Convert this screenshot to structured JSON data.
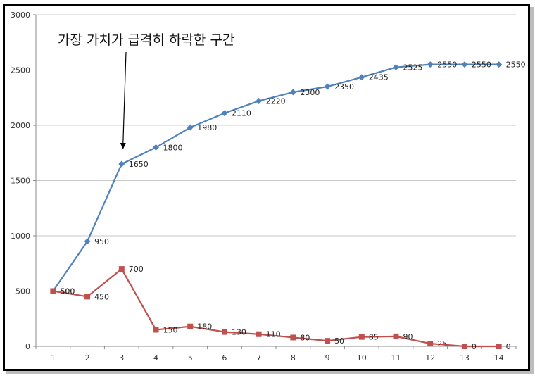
{
  "chart_data": {
    "type": "line",
    "title": "",
    "xlabel": "",
    "ylabel": "",
    "categories": [
      "1",
      "2",
      "3",
      "4",
      "5",
      "6",
      "7",
      "8",
      "9",
      "10",
      "11",
      "12",
      "13",
      "14"
    ],
    "ylim": [
      0,
      3000
    ],
    "yticks": [
      0,
      500,
      1000,
      1500,
      2000,
      2500,
      3000
    ],
    "grid": true,
    "legend": "none",
    "series": [
      {
        "values": [
          500,
          950,
          1650,
          1800,
          1980,
          2110,
          2220,
          2300,
          2350,
          2435,
          2525,
          2550,
          2550,
          2550
        ],
        "color": "#4f81bd",
        "marker": "diamond"
      },
      {
        "values": [
          500,
          450,
          700,
          150,
          180,
          130,
          110,
          80,
          50,
          85,
          90,
          25,
          0,
          0
        ],
        "color": "#c0504d",
        "marker": "square"
      }
    ],
    "annotation": {
      "text": "가장 가치가 급격히 하락한 구간",
      "points_to_category": "3"
    }
  }
}
